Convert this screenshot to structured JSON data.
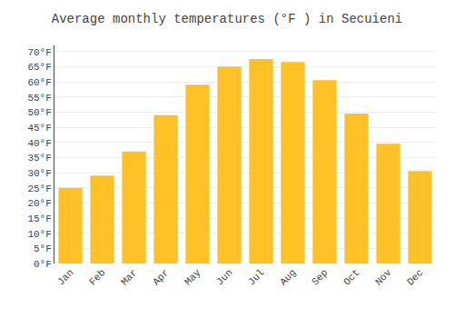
{
  "chart_data": {
    "type": "bar",
    "title": "Average monthly temperatures (°F ) in Secuieni",
    "categories": [
      "Jan",
      "Feb",
      "Mar",
      "Apr",
      "May",
      "Jun",
      "Jul",
      "Aug",
      "Sep",
      "Oct",
      "Nov",
      "Dec"
    ],
    "values": [
      25,
      29,
      37,
      49,
      59,
      65,
      67.5,
      66.5,
      60.5,
      49.5,
      39.5,
      30.5
    ],
    "color": "#FFC125",
    "ylim": [
      0,
      72
    ],
    "yticks": [
      {
        "value": 0,
        "label": "0°F"
      },
      {
        "value": 5,
        "label": "5°F"
      },
      {
        "value": 10,
        "label": "10°F"
      },
      {
        "value": 15,
        "label": "15°F"
      },
      {
        "value": 20,
        "label": "20°F"
      },
      {
        "value": 25,
        "label": "25°F"
      },
      {
        "value": 30,
        "label": "30°F"
      },
      {
        "value": 35,
        "label": "35°F"
      },
      {
        "value": 40,
        "label": "40°F"
      },
      {
        "value": 45,
        "label": "45°F"
      },
      {
        "value": 50,
        "label": "50°F"
      },
      {
        "value": 55,
        "label": "55°F"
      },
      {
        "value": 60,
        "label": "60°F"
      },
      {
        "value": 65,
        "label": "65°F"
      },
      {
        "value": 70,
        "label": "70°F"
      }
    ],
    "grid": true
  }
}
